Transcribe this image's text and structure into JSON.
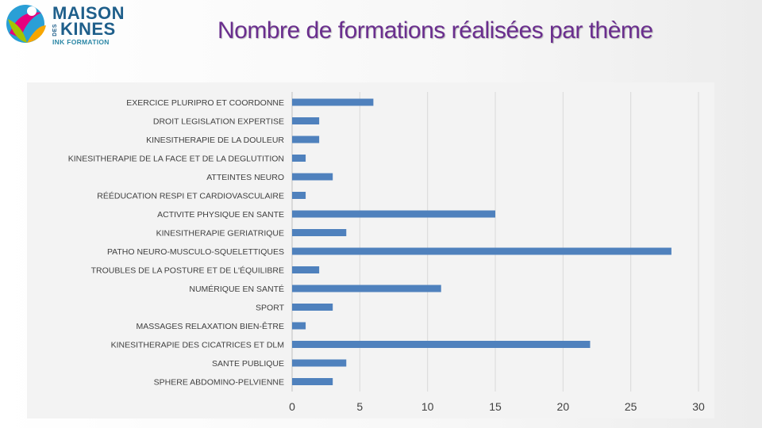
{
  "header": {
    "title": "Nombre de formations réalisées par thème"
  },
  "logo": {
    "line1": "MAISON",
    "des": "DES",
    "line2": "KINES",
    "sub": "INK FORMATION"
  },
  "colors": {
    "bar": "#4f81bd",
    "title": "#6a2e8e",
    "grid": "#d9d9d9",
    "chart_bg": "#f3f3f3"
  },
  "chart_data": {
    "type": "bar",
    "orientation": "horizontal",
    "categories": [
      "EXERCICE PLURIPRO ET  COORDONNE",
      "DROIT LEGISLATION EXPERTISE",
      "KINESITHERAPIE DE LA DOULEUR",
      "KINESITHERAPIE DE LA FACE ET DE LA DEGLUTITION",
      "ATTEINTES NEURO",
      "RÉÉDUCATION RESPI ET CARDIOVASCULAIRE",
      "ACTIVITE PHYSIQUE EN SANTE",
      "KINESITHERAPIE GERIATRIQUE",
      "PATHO NEURO-MUSCULO-SQUELETTIQUES",
      "TROUBLES DE LA POSTURE ET DE L'ÉQUILIBRE",
      "NUMÉRIQUE EN SANTÉ",
      "SPORT",
      "MASSAGES RELAXATION BIEN-ÊTRE",
      "KINESITHERAPIE DES CICATRICES ET DLM",
      "SANTE PUBLIQUE",
      "SPHERE ABDOMINO-PELVIENNE"
    ],
    "values": [
      6,
      2,
      2,
      1,
      3,
      1,
      15,
      4,
      28,
      2,
      11,
      3,
      1,
      22,
      4,
      3
    ],
    "xlim": [
      0,
      30
    ],
    "xticks": [
      "0",
      "5",
      "10",
      "15",
      "20",
      "25",
      "30"
    ],
    "grid": true,
    "legend": "none"
  }
}
